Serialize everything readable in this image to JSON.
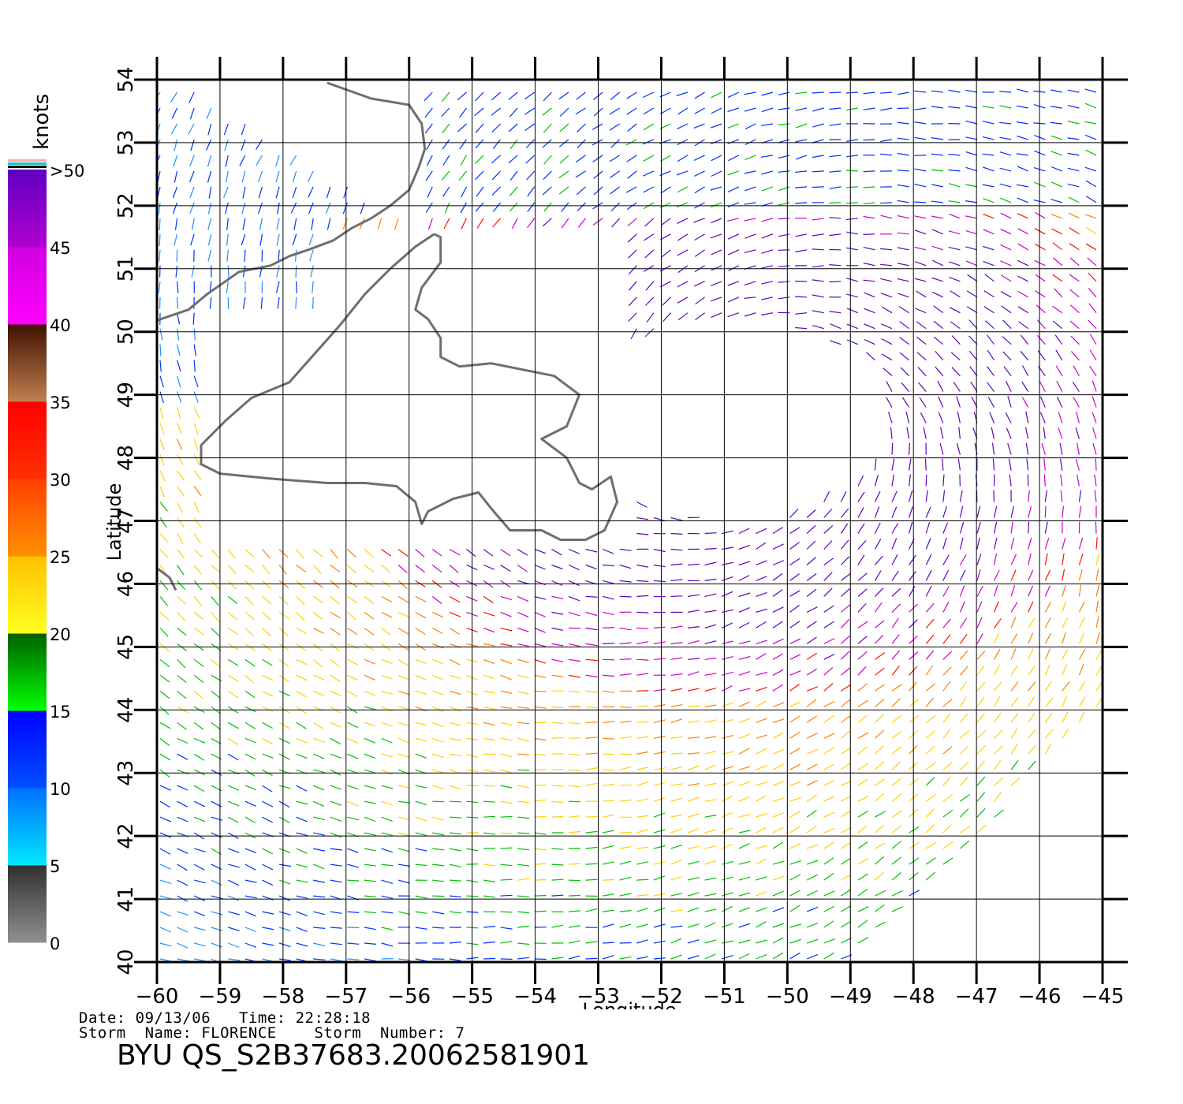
{
  "map": {
    "xlabel": "Longitude",
    "ylabel": "Latitude",
    "lon_range": [
      -60,
      -45
    ],
    "lat_range": [
      40,
      54
    ],
    "lon_ticks": [
      "−60",
      "−59",
      "−58",
      "−57",
      "−56",
      "−55",
      "−54",
      "−53",
      "−52",
      "−51",
      "−50",
      "−49",
      "−48",
      "−47",
      "−46",
      "−45"
    ],
    "lat_ticks": [
      "40",
      "41",
      "42",
      "43",
      "44",
      "45",
      "46",
      "47",
      "48",
      "49",
      "50",
      "51",
      "52",
      "53",
      "54"
    ]
  },
  "colorbar": {
    "unit_label": "knots",
    "tick_labels": [
      "0",
      "5",
      "10",
      "15",
      "20",
      "25",
      "30",
      "35",
      "40",
      "45",
      ">50"
    ],
    "bands": [
      {
        "from": 0,
        "to": 5,
        "top_color": "#303030",
        "bottom_color": "#909090"
      },
      {
        "from": 5,
        "to": 10,
        "top_color": "#0070ff",
        "bottom_color": "#00e8ff"
      },
      {
        "from": 10,
        "to": 15,
        "top_color": "#0000ff",
        "bottom_color": "#0050ff"
      },
      {
        "from": 15,
        "to": 20,
        "top_color": "#006000",
        "bottom_color": "#00ff00"
      },
      {
        "from": 20,
        "to": 25,
        "top_color": "#ffc000",
        "bottom_color": "#ffff20"
      },
      {
        "from": 25,
        "to": 30,
        "top_color": "#ff4000",
        "bottom_color": "#ff9000"
      },
      {
        "from": 30,
        "to": 35,
        "top_color": "#ff0000",
        "bottom_color": "#ff3000"
      },
      {
        "from": 35,
        "to": 40,
        "top_color": "#401000",
        "bottom_color": "#c08050"
      },
      {
        "from": 40,
        "to": 45,
        "top_color": "#d000e0",
        "bottom_color": "#ff00ff"
      },
      {
        "from": 45,
        "to": 50,
        "top_color": "#6000c0",
        "bottom_color": "#b000d0"
      }
    ],
    "cap_stripes": [
      "#ffaaaa",
      "#20c0c0",
      "#000000"
    ]
  },
  "vector_colors": {
    "calm": "#303030",
    "light": "#1e90ff",
    "blue": "#0030ff",
    "green": "#00c000",
    "yellow": "#ffd000",
    "orange": "#ff8000",
    "red": "#ff1000",
    "magenta": "#cc00cc",
    "purple": "#6000c0"
  },
  "coast_color": "#6e6e6e",
  "metadata": {
    "line1": "Date: 09/13/06   Time: 22:28:18",
    "line2": "Storm  Name: FLORENCE    Storm  Number: 7",
    "product": "BYU  QS_S2B37683.20062581901"
  }
}
